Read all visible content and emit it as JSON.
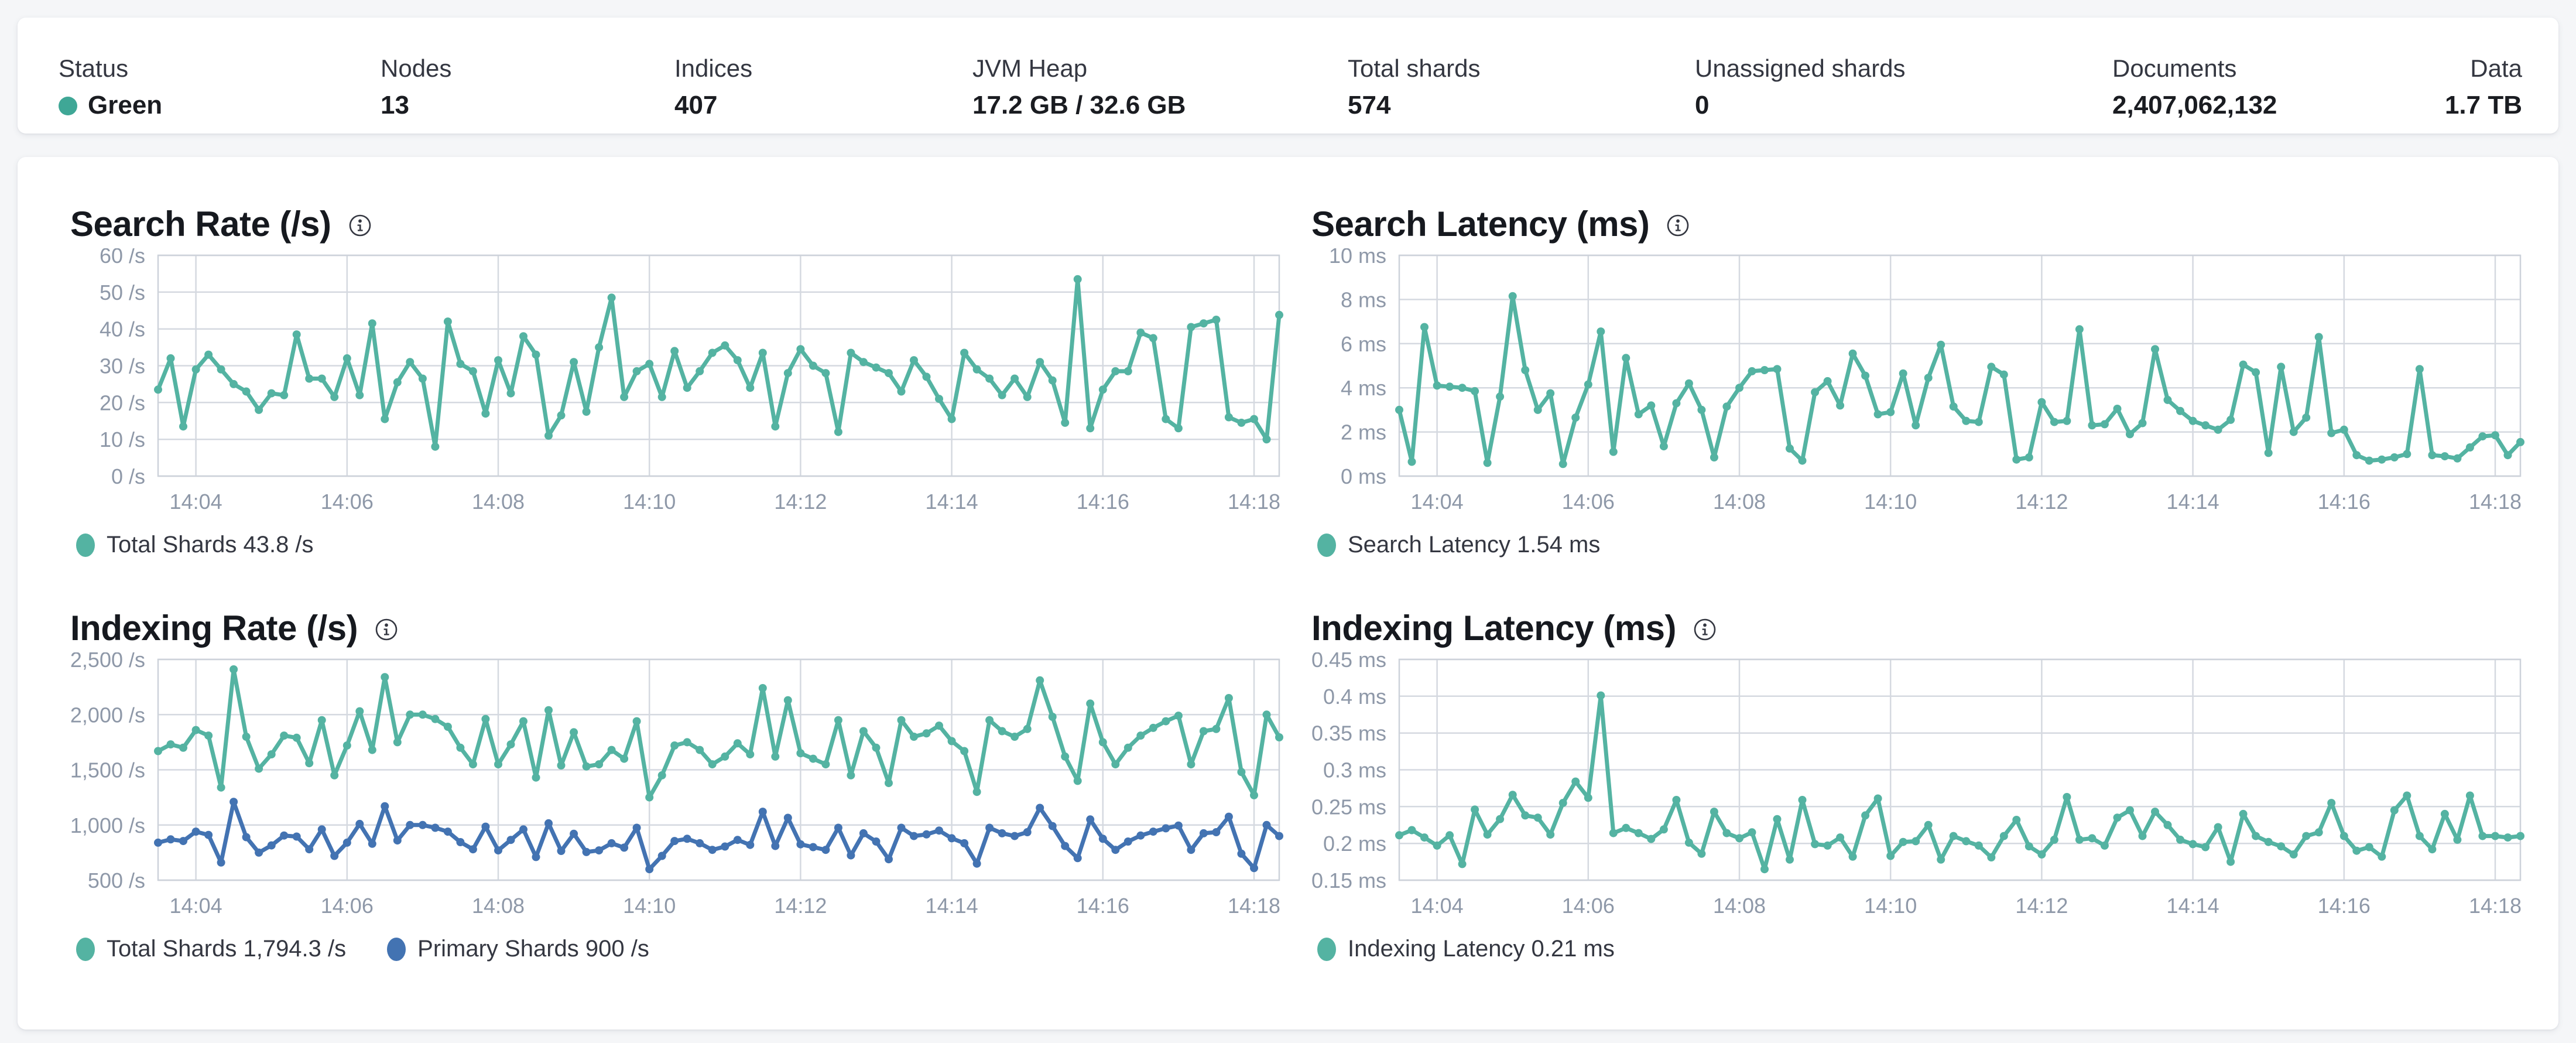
{
  "colors": {
    "teal": "#54b3a2",
    "blue": "#4373b2",
    "grid": "#d5d9e0",
    "border": "#cdd2da",
    "axis_text": "#8e98a8",
    "title_text": "#16191f",
    "label_text": "#343741",
    "status_green": "#3fa796"
  },
  "status_bar": {
    "items": [
      {
        "label": "Status",
        "value": "Green"
      },
      {
        "label": "Nodes",
        "value": "13"
      },
      {
        "label": "Indices",
        "value": "407"
      },
      {
        "label": "JVM Heap",
        "value": "17.2 GB / 32.6 GB"
      },
      {
        "label": "Total shards",
        "value": "574"
      },
      {
        "label": "Unassigned shards",
        "value": "0"
      },
      {
        "label": "Documents",
        "value": "2,407,062,132"
      },
      {
        "label": "Data",
        "value": "1.7 TB"
      }
    ]
  },
  "chart_data": [
    {
      "type": "line",
      "title": "Search Rate (/s)",
      "ylim": [
        0,
        60
      ],
      "grid": true,
      "legend_position": "bottom",
      "yticks": [
        {
          "v": 60,
          "label": "60 /s"
        },
        {
          "v": 50,
          "label": "50 /s"
        },
        {
          "v": 40,
          "label": "40 /s"
        },
        {
          "v": 30,
          "label": "30 /s"
        },
        {
          "v": 20,
          "label": "20 /s"
        },
        {
          "v": 10,
          "label": "10 /s"
        },
        {
          "v": 0,
          "label": "0 /s"
        }
      ],
      "xticks": [
        {
          "i": 3,
          "label": "14:04"
        },
        {
          "i": 15,
          "label": "14:06"
        },
        {
          "i": 27,
          "label": "14:08"
        },
        {
          "i": 39,
          "label": "14:10"
        },
        {
          "i": 51,
          "label": "14:12"
        },
        {
          "i": 63,
          "label": "14:14"
        },
        {
          "i": 75,
          "label": "14:16"
        },
        {
          "i": 87,
          "label": "14:18"
        }
      ],
      "series": [
        {
          "name": "Total Shards",
          "legend_label": "Total Shards 43.8 /s",
          "color": "teal",
          "values": [
            23.5,
            32,
            13.5,
            29,
            33,
            29,
            25,
            23,
            18,
            22.5,
            22,
            38.5,
            26.5,
            26.5,
            21.5,
            32,
            22,
            41.5,
            15.5,
            25.5,
            31,
            26.5,
            8,
            42,
            30.5,
            28.5,
            17,
            31.5,
            22.5,
            38,
            33,
            11,
            16.5,
            31,
            17.5,
            35,
            48.5,
            21.5,
            28.5,
            30.5,
            21.5,
            34,
            24,
            28.5,
            33.5,
            35.5,
            31.5,
            24,
            33.5,
            13.5,
            28,
            34.5,
            30,
            28,
            12,
            33.5,
            31,
            29.5,
            28,
            23,
            31.5,
            27,
            21,
            15.5,
            33.5,
            29,
            26.5,
            22,
            26.5,
            21.5,
            31,
            26,
            14.5,
            53.5,
            13,
            23.5,
            28.5,
            28.5,
            39,
            37.5,
            15.5,
            13,
            40.5,
            41.5,
            42.5,
            16,
            14.5,
            15.5,
            10,
            43.8
          ]
        }
      ]
    },
    {
      "type": "line",
      "title": "Search Latency (ms)",
      "ylim": [
        0,
        10
      ],
      "grid": true,
      "legend_position": "bottom",
      "yticks": [
        {
          "v": 10,
          "label": "10 ms"
        },
        {
          "v": 8,
          "label": "8 ms"
        },
        {
          "v": 6,
          "label": "6 ms"
        },
        {
          "v": 4,
          "label": "4 ms"
        },
        {
          "v": 2,
          "label": "2 ms"
        },
        {
          "v": 0,
          "label": "0 ms"
        }
      ],
      "xticks": [
        {
          "i": 3,
          "label": "14:04"
        },
        {
          "i": 15,
          "label": "14:06"
        },
        {
          "i": 27,
          "label": "14:08"
        },
        {
          "i": 39,
          "label": "14:10"
        },
        {
          "i": 51,
          "label": "14:12"
        },
        {
          "i": 63,
          "label": "14:14"
        },
        {
          "i": 75,
          "label": "14:16"
        },
        {
          "i": 87,
          "label": "14:18"
        }
      ],
      "series": [
        {
          "name": "Search Latency",
          "legend_label": "Search Latency 1.54 ms",
          "color": "teal",
          "values": [
            3,
            0.65,
            6.75,
            4.1,
            4.05,
            4,
            3.85,
            0.6,
            3.6,
            8.15,
            4.8,
            3,
            3.75,
            0.55,
            2.65,
            4.15,
            6.55,
            1.1,
            5.35,
            2.8,
            3.2,
            1.35,
            3.3,
            4.2,
            3,
            0.85,
            3.15,
            4,
            4.75,
            4.8,
            4.85,
            1.25,
            0.7,
            3.8,
            4.3,
            3.2,
            5.55,
            4.55,
            2.8,
            2.9,
            4.65,
            2.3,
            4.45,
            5.95,
            3.15,
            2.5,
            2.45,
            4.95,
            4.6,
            0.75,
            0.85,
            3.35,
            2.45,
            2.5,
            6.65,
            2.3,
            2.35,
            3.05,
            1.9,
            2.4,
            5.75,
            3.45,
            2.95,
            2.5,
            2.3,
            2.1,
            2.55,
            5.05,
            4.7,
            1.05,
            4.95,
            2,
            2.65,
            6.3,
            1.95,
            2.1,
            0.95,
            0.7,
            0.75,
            0.85,
            1,
            4.85,
            0.95,
            0.9,
            0.8,
            1.3,
            1.8,
            1.85,
            0.95,
            1.54
          ]
        }
      ]
    },
    {
      "type": "line",
      "title": "Indexing Rate (/s)",
      "ylim": [
        500,
        2500
      ],
      "grid": true,
      "legend_position": "bottom",
      "yticks": [
        {
          "v": 2500,
          "label": "2,500 /s"
        },
        {
          "v": 2000,
          "label": "2,000 /s"
        },
        {
          "v": 1500,
          "label": "1,500 /s"
        },
        {
          "v": 1000,
          "label": "1,000 /s"
        },
        {
          "v": 500,
          "label": "500 /s"
        }
      ],
      "xticks": [
        {
          "i": 3,
          "label": "14:04"
        },
        {
          "i": 15,
          "label": "14:06"
        },
        {
          "i": 27,
          "label": "14:08"
        },
        {
          "i": 39,
          "label": "14:10"
        },
        {
          "i": 51,
          "label": "14:12"
        },
        {
          "i": 63,
          "label": "14:14"
        },
        {
          "i": 75,
          "label": "14:16"
        },
        {
          "i": 87,
          "label": "14:18"
        }
      ],
      "series": [
        {
          "name": "Total Shards",
          "legend_label": "Total Shards 1,794.3 /s",
          "color": "teal",
          "values": [
            1670,
            1730,
            1700,
            1860,
            1810,
            1340,
            2410,
            1800,
            1510,
            1640,
            1810,
            1790,
            1560,
            1950,
            1450,
            1720,
            2030,
            1680,
            2340,
            1750,
            2000,
            2000,
            1960,
            1890,
            1700,
            1550,
            1960,
            1550,
            1730,
            1940,
            1430,
            2040,
            1540,
            1840,
            1530,
            1550,
            1680,
            1600,
            1940,
            1250,
            1450,
            1720,
            1750,
            1680,
            1550,
            1620,
            1740,
            1640,
            2240,
            1620,
            2130,
            1650,
            1600,
            1550,
            1950,
            1450,
            1850,
            1700,
            1380,
            1950,
            1800,
            1830,
            1900,
            1760,
            1670,
            1300,
            1950,
            1850,
            1800,
            1870,
            2310,
            1980,
            1620,
            1400,
            2100,
            1750,
            1550,
            1700,
            1810,
            1880,
            1940,
            1990,
            1550,
            1850,
            1870,
            2150,
            1480,
            1270,
            2000,
            1794.3
          ]
        },
        {
          "name": "Primary Shards",
          "legend_label": "Primary Shards 900 /s",
          "color": "blue",
          "values": [
            840,
            870,
            855,
            940,
            910,
            660,
            1210,
            890,
            750,
            815,
            905,
            895,
            780,
            960,
            720,
            840,
            1010,
            830,
            1170,
            860,
            1000,
            1000,
            975,
            940,
            845,
            780,
            985,
            770,
            865,
            960,
            710,
            1015,
            765,
            920,
            755,
            770,
            835,
            795,
            975,
            600,
            720,
            855,
            875,
            835,
            775,
            805,
            865,
            820,
            1120,
            810,
            1065,
            825,
            800,
            775,
            975,
            725,
            925,
            850,
            690,
            975,
            900,
            915,
            950,
            880,
            835,
            650,
            975,
            925,
            900,
            935,
            1155,
            990,
            810,
            700,
            1050,
            875,
            775,
            850,
            905,
            940,
            970,
            995,
            775,
            925,
            935,
            1075,
            740,
            610,
            1000,
            900
          ]
        }
      ]
    },
    {
      "type": "line",
      "title": "Indexing Latency (ms)",
      "ylim": [
        0.15,
        0.45
      ],
      "grid": true,
      "legend_position": "bottom",
      "yticks": [
        {
          "v": 0.45,
          "label": "0.45 ms"
        },
        {
          "v": 0.4,
          "label": "0.4 ms"
        },
        {
          "v": 0.35,
          "label": "0.35 ms"
        },
        {
          "v": 0.3,
          "label": "0.3 ms"
        },
        {
          "v": 0.25,
          "label": "0.25 ms"
        },
        {
          "v": 0.2,
          "label": "0.2 ms"
        },
        {
          "v": 0.15,
          "label": "0.15 ms"
        }
      ],
      "xticks": [
        {
          "i": 3,
          "label": "14:04"
        },
        {
          "i": 15,
          "label": "14:06"
        },
        {
          "i": 27,
          "label": "14:08"
        },
        {
          "i": 39,
          "label": "14:10"
        },
        {
          "i": 51,
          "label": "14:12"
        },
        {
          "i": 63,
          "label": "14:14"
        },
        {
          "i": 75,
          "label": "14:16"
        },
        {
          "i": 87,
          "label": "14:18"
        }
      ],
      "series": [
        {
          "name": "Indexing Latency",
          "legend_label": "Indexing Latency 0.21 ms",
          "color": "teal",
          "values": [
            0.211,
            0.218,
            0.208,
            0.197,
            0.211,
            0.172,
            0.246,
            0.212,
            0.233,
            0.266,
            0.238,
            0.235,
            0.212,
            0.255,
            0.284,
            0.262,
            0.401,
            0.214,
            0.221,
            0.214,
            0.206,
            0.219,
            0.259,
            0.201,
            0.186,
            0.243,
            0.214,
            0.207,
            0.215,
            0.165,
            0.233,
            0.178,
            0.259,
            0.199,
            0.197,
            0.208,
            0.182,
            0.238,
            0.261,
            0.183,
            0.202,
            0.203,
            0.225,
            0.178,
            0.21,
            0.203,
            0.197,
            0.181,
            0.21,
            0.232,
            0.196,
            0.185,
            0.205,
            0.263,
            0.205,
            0.207,
            0.197,
            0.235,
            0.245,
            0.21,
            0.243,
            0.225,
            0.205,
            0.199,
            0.195,
            0.222,
            0.175,
            0.24,
            0.21,
            0.202,
            0.196,
            0.185,
            0.21,
            0.215,
            0.255,
            0.21,
            0.19,
            0.195,
            0.182,
            0.245,
            0.265,
            0.21,
            0.192,
            0.24,
            0.205,
            0.265,
            0.21,
            0.21,
            0.208,
            0.21
          ]
        }
      ]
    }
  ]
}
